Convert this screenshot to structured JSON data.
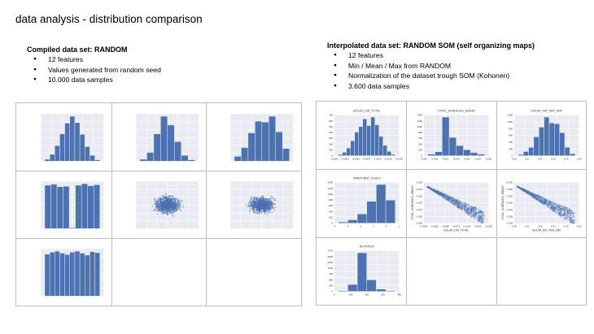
{
  "slide": {
    "title": "data analysis - distribution comparison"
  },
  "left_panel": {
    "title": "Compiled data set: RANDOM",
    "bullets": [
      "12 features",
      "Values generated from random seed",
      "10.000 data samples"
    ]
  },
  "right_panel": {
    "title": "Interpolated data set: RANDOM SOM (self organizing maps)",
    "bullets": [
      "12 features",
      "Min / Mean / Max from RANDOM",
      "Normalization of the dataset trough SOM (Kohonen)",
      "3.600 data samples"
    ]
  },
  "colors": {
    "bar": "#4c72b0",
    "plot_bg": "#eaeaf2",
    "grid": "#ffffff",
    "border": "#bdbdbd"
  },
  "left_charts": [
    {
      "type": "bar",
      "values": [
        4,
        14,
        32,
        56,
        78,
        92,
        79,
        55,
        30,
        12,
        3
      ]
    },
    {
      "type": "bar",
      "values": [
        4,
        18,
        56,
        92,
        74,
        40,
        12,
        3
      ]
    },
    {
      "type": "bar",
      "values": [
        10,
        28,
        58,
        82,
        80,
        92,
        60,
        26
      ]
    },
    {
      "type": "bar",
      "values": [
        86,
        88,
        83,
        84,
        2,
        86,
        89,
        85,
        87
      ]
    },
    {
      "type": "scatter",
      "cloud": "random-circle",
      "n": 1100
    },
    {
      "type": "scatter",
      "cloud": "random-ellipse",
      "n": 1100
    },
    {
      "type": "bar",
      "values": [
        84,
        88,
        90,
        86,
        83,
        88,
        90,
        86,
        82,
        89,
        87
      ]
    }
  ],
  "right_charts": [
    {
      "type": "bar",
      "title": "SOLAR_DIR_TOTAL",
      "values": [
        3,
        8,
        18,
        35,
        55,
        68,
        86,
        70,
        90,
        72,
        45,
        24,
        10,
        3
      ],
      "yticks": [
        "0",
        "100",
        "200",
        "300",
        "400",
        "500",
        "600",
        "700"
      ],
      "xticks": [
        "0.0000",
        "0.0025",
        "0.0050",
        "0.0075",
        "0.0100",
        "0.0125",
        "0.0150"
      ]
    },
    {
      "type": "bar",
      "title": "TOTAL_SURFACES_AREAS",
      "values": [
        4,
        10,
        95,
        45,
        25,
        15,
        8,
        4
      ],
      "yticks": [
        "0",
        "200",
        "400",
        "600",
        "800",
        "1000",
        "1200",
        "1400"
      ],
      "xticks": [
        "0.000",
        "0.005",
        "0.010",
        "0.015",
        "0.020",
        "0.025",
        "0.030"
      ]
    },
    {
      "type": "bar",
      "title": "SOLAR_DIR_PER_SRF",
      "values": [
        3,
        10,
        20,
        45,
        68,
        92,
        78,
        76,
        55,
        20,
        5
      ],
      "yticks": [
        "0",
        "200",
        "400",
        "600",
        "800",
        "1000",
        "1200"
      ],
      "xticks": [
        "0.00",
        "0.01",
        "0.02",
        "0.03",
        "0.04",
        "0.05"
      ]
    },
    {
      "type": "bar",
      "title": "ORIENTANT_SCALE",
      "values": [
        3,
        8,
        22,
        52,
        92,
        55
      ],
      "yticks": [
        "0",
        "200",
        "400",
        "600",
        "800",
        "1000",
        "1200",
        "1400"
      ],
      "xticks": [
        "-4",
        "-3",
        "-2",
        "-1",
        "0",
        "1"
      ]
    },
    {
      "type": "scatter",
      "cloud": "fan",
      "n": 520,
      "ylabel": "TOTAL_SURFACES_AREAS",
      "xlabel": "SOLAR_DIR_TOTAL",
      "xticks": [
        "0.0000",
        "0.0025",
        "0.0050",
        "0.0075",
        "0.0100",
        "0.0125",
        "0.0150"
      ],
      "yticks": [
        "0.000",
        "0.005",
        "0.010",
        "0.015",
        "0.020",
        "0.025",
        "0.030"
      ]
    },
    {
      "type": "scatter",
      "cloud": "fan",
      "n": 520,
      "ylabel": "TOTAL_SURFACES_AREAS",
      "xlabel": "SOLAR_DIR_PER_SRF",
      "xticks": [
        "0.00",
        "0.01",
        "0.02",
        "0.03",
        "0.04",
        "0.05"
      ],
      "yticks": [
        "0.000",
        "0.005",
        "0.010",
        "0.015",
        "0.020",
        "0.025",
        "0.030"
      ]
    },
    {
      "type": "bar",
      "title": "ROTATION",
      "values": [
        2,
        18,
        100,
        30,
        6,
        2
      ],
      "yticks": [
        "0",
        "250",
        "500",
        "750",
        "1000",
        "1250",
        "1500",
        "1750"
      ],
      "xticks": [
        "0",
        "100",
        "200",
        "300",
        "400"
      ]
    }
  ]
}
